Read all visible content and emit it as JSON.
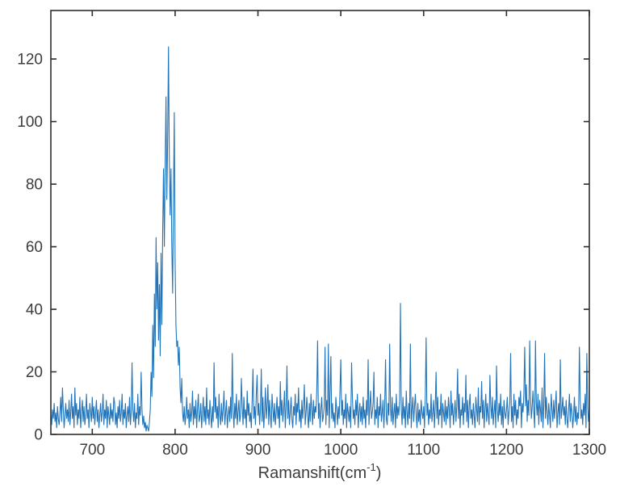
{
  "figure": {
    "background": "#ffffff"
  },
  "chart_data": {
    "type": "line",
    "title": "",
    "xlabel_main": "Ramanshift(cm",
    "xlabel_sup": "-1",
    "xlabel_end": ")",
    "ylabel": "",
    "legend": null,
    "grid": false,
    "xlim": [
      650,
      1300
    ],
    "ylim": [
      0,
      135.5
    ],
    "x_ticks": [
      700,
      800,
      900,
      1000,
      1100,
      1200,
      1300
    ],
    "y_ticks": [
      0,
      20,
      40,
      60,
      80,
      100,
      120
    ],
    "line_color": "#2374b8",
    "axis_color": "#2e2e2e",
    "tick_label_color": "#3c3c3c",
    "x_start": 650,
    "x_step": 1,
    "values": [
      6,
      3,
      8,
      5,
      10,
      4,
      7,
      2,
      9,
      5,
      3,
      7,
      12,
      4,
      15,
      8,
      2,
      6,
      10,
      5,
      8,
      4,
      11,
      3,
      7,
      13,
      5,
      9,
      2,
      15,
      6,
      10,
      3,
      8,
      5,
      12,
      2,
      7,
      11,
      4,
      9,
      3,
      6,
      13,
      5,
      8,
      2,
      10,
      7,
      4,
      12,
      5,
      9,
      3,
      7,
      11,
      4,
      8,
      2,
      6,
      10,
      4,
      7,
      13,
      3,
      8,
      5,
      11,
      2,
      9,
      6,
      3,
      10,
      5,
      8,
      4,
      12,
      10,
      3,
      7,
      2,
      9,
      5,
      11,
      4,
      7,
      13,
      3,
      8,
      5,
      10,
      2,
      6,
      9,
      4,
      12,
      3,
      7,
      23,
      8,
      4,
      10,
      2,
      7,
      5,
      13,
      3,
      9,
      6,
      20,
      8,
      3,
      6,
      2,
      4,
      1,
      3,
      2,
      1,
      4,
      8,
      20,
      12,
      35,
      18,
      45,
      28,
      63,
      40,
      55,
      30,
      48,
      25,
      58,
      35,
      65,
      85,
      60,
      86,
      108,
      75,
      95,
      124,
      88,
      70,
      85,
      60,
      45,
      75,
      103,
      55,
      35,
      28,
      30,
      22,
      28,
      15,
      10,
      18,
      7,
      4,
      9,
      3,
      6,
      12,
      5,
      8,
      2,
      10,
      4,
      7,
      14,
      3,
      9,
      5,
      11,
      2,
      8,
      13,
      4,
      6,
      10,
      2,
      7,
      12,
      4,
      9,
      3,
      15,
      5,
      8,
      3,
      11,
      6,
      2,
      9,
      4,
      23,
      7,
      12,
      5,
      9,
      2,
      13,
      6,
      3,
      10,
      4,
      8,
      14,
      3,
      7,
      11,
      2,
      6,
      9,
      4,
      12,
      5,
      26,
      8,
      2,
      10,
      5,
      13,
      3,
      7,
      11,
      4,
      6,
      18,
      9,
      3,
      12,
      5,
      8,
      2,
      14,
      6,
      10,
      4,
      7,
      2,
      11,
      21,
      5,
      9,
      3,
      13,
      19,
      6,
      10,
      3,
      8,
      21,
      4,
      12,
      2,
      7,
      15,
      5,
      9,
      16,
      3,
      11,
      6,
      2,
      13,
      8,
      4,
      10,
      3,
      7,
      12,
      5,
      9,
      2,
      17,
      6,
      11,
      4,
      8,
      14,
      2,
      9,
      22,
      5,
      11,
      3,
      7,
      12,
      5,
      2,
      9,
      6,
      13,
      3,
      10,
      7,
      15,
      4,
      8,
      2,
      11,
      5,
      9,
      16,
      3,
      7,
      12,
      6,
      2,
      10,
      4,
      13,
      8,
      3,
      11,
      5,
      9,
      7,
      14,
      30,
      5,
      10,
      2,
      8,
      12,
      4,
      6,
      9,
      28,
      3,
      11,
      6,
      29,
      2,
      13,
      25,
      5,
      10,
      4,
      7,
      2,
      12,
      8,
      3,
      9,
      5,
      14,
      24,
      6,
      11,
      3,
      8,
      5,
      13,
      2,
      10,
      7,
      4,
      9,
      2,
      23,
      12,
      5,
      8,
      3,
      11,
      6,
      13,
      2,
      7,
      10,
      4,
      9,
      3,
      12,
      5,
      8,
      2,
      11,
      6,
      24,
      3,
      9,
      14,
      5,
      7,
      10,
      20,
      3,
      8,
      5,
      12,
      2,
      9,
      6,
      13,
      4,
      7,
      11,
      2,
      9,
      24,
      5,
      3,
      10,
      6,
      29,
      8,
      4,
      12,
      3,
      7,
      10,
      2,
      13,
      5,
      9,
      6,
      11,
      42,
      8,
      3,
      12,
      5,
      9,
      2,
      14,
      7,
      3,
      10,
      5,
      29,
      2,
      8,
      12,
      4,
      9,
      13,
      6,
      2,
      10,
      4,
      8,
      3,
      11,
      7,
      5,
      9,
      2,
      12,
      31,
      6,
      10,
      3,
      8,
      5,
      13,
      4,
      7,
      11,
      2,
      9,
      20,
      5,
      12,
      3,
      8,
      6,
      13,
      2,
      10,
      7,
      4,
      11,
      3,
      9,
      5,
      12,
      8,
      2,
      14,
      6,
      10,
      3,
      7,
      11,
      4,
      9,
      21,
      5,
      13,
      2,
      8,
      6,
      12,
      3,
      10,
      7,
      19,
      4,
      11,
      2,
      9,
      13,
      5,
      8,
      3,
      10,
      6,
      2,
      12,
      8,
      4,
      15,
      3,
      9,
      7,
      17,
      5,
      11,
      2,
      8,
      13,
      4,
      10,
      6,
      3,
      19,
      9,
      5,
      12,
      3,
      7,
      11,
      2,
      22,
      8,
      4,
      10,
      6,
      13,
      3,
      9,
      2,
      11,
      7,
      5,
      8,
      12,
      3,
      7,
      10,
      26,
      4,
      9,
      2,
      13,
      6,
      11,
      3,
      8,
      5,
      12,
      9,
      14,
      2,
      10,
      7,
      13,
      28,
      9,
      16,
      4,
      11,
      6,
      30,
      12,
      5,
      9,
      14,
      7,
      2,
      30,
      10,
      6,
      13,
      3,
      11,
      8,
      4,
      15,
      2,
      9,
      26,
      5,
      12,
      7,
      3,
      10,
      6,
      2,
      13,
      8,
      4,
      11,
      5,
      9,
      14,
      2,
      7,
      10,
      3,
      24,
      5,
      8,
      12,
      6,
      9,
      3,
      11,
      5,
      2,
      8,
      13,
      4,
      10,
      7,
      2,
      6,
      12,
      4,
      9,
      3,
      7,
      5,
      28,
      11,
      5,
      8,
      3,
      10,
      6,
      13,
      2,
      26,
      9,
      4,
      7
    ]
  }
}
